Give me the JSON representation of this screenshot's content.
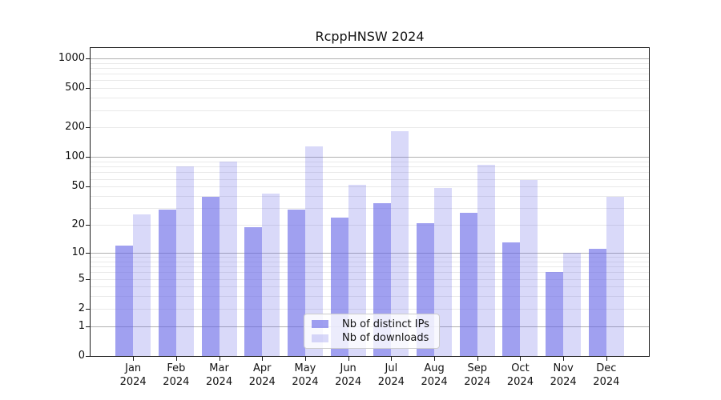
{
  "chart_data": {
    "type": "bar",
    "title": "RcppHNSW 2024",
    "categories": [
      "Jan",
      "Feb",
      "Mar",
      "Apr",
      "May",
      "Jun",
      "Jul",
      "Aug",
      "Sep",
      "Oct",
      "Nov",
      "Dec"
    ],
    "category_year": "2024",
    "series": [
      {
        "name": "Nb of distinct IPs",
        "color": "rgba(102,102,230,0.62)",
        "values": [
          12,
          29,
          39,
          19,
          29,
          24,
          34,
          21,
          27,
          13,
          6,
          11
        ]
      },
      {
        "name": "Nb of downloads",
        "color": "rgba(102,102,230,0.25)",
        "values": [
          26,
          81,
          91,
          42,
          129,
          52,
          185,
          48,
          84,
          58,
          10,
          39
        ]
      }
    ],
    "xlabel": "",
    "ylabel": "",
    "yscale": "log1p",
    "ylim": [
      0,
      1273
    ],
    "yticks": [
      0,
      1,
      2,
      5,
      10,
      20,
      50,
      100,
      200,
      500,
      1000
    ],
    "grid": {
      "major_lines": [
        1,
        10,
        100,
        1000
      ],
      "minor_lines": [
        2,
        3,
        4,
        5,
        6,
        7,
        8,
        9,
        20,
        30,
        40,
        50,
        60,
        70,
        80,
        90,
        200,
        300,
        400,
        500,
        600,
        700,
        800,
        900
      ],
      "major_color": "#b0b0b0",
      "minor_color": "#e9e9e9"
    },
    "legend_position": "lower center",
    "axis_color": "#1a1a1a",
    "background_color": "#ffffff"
  }
}
